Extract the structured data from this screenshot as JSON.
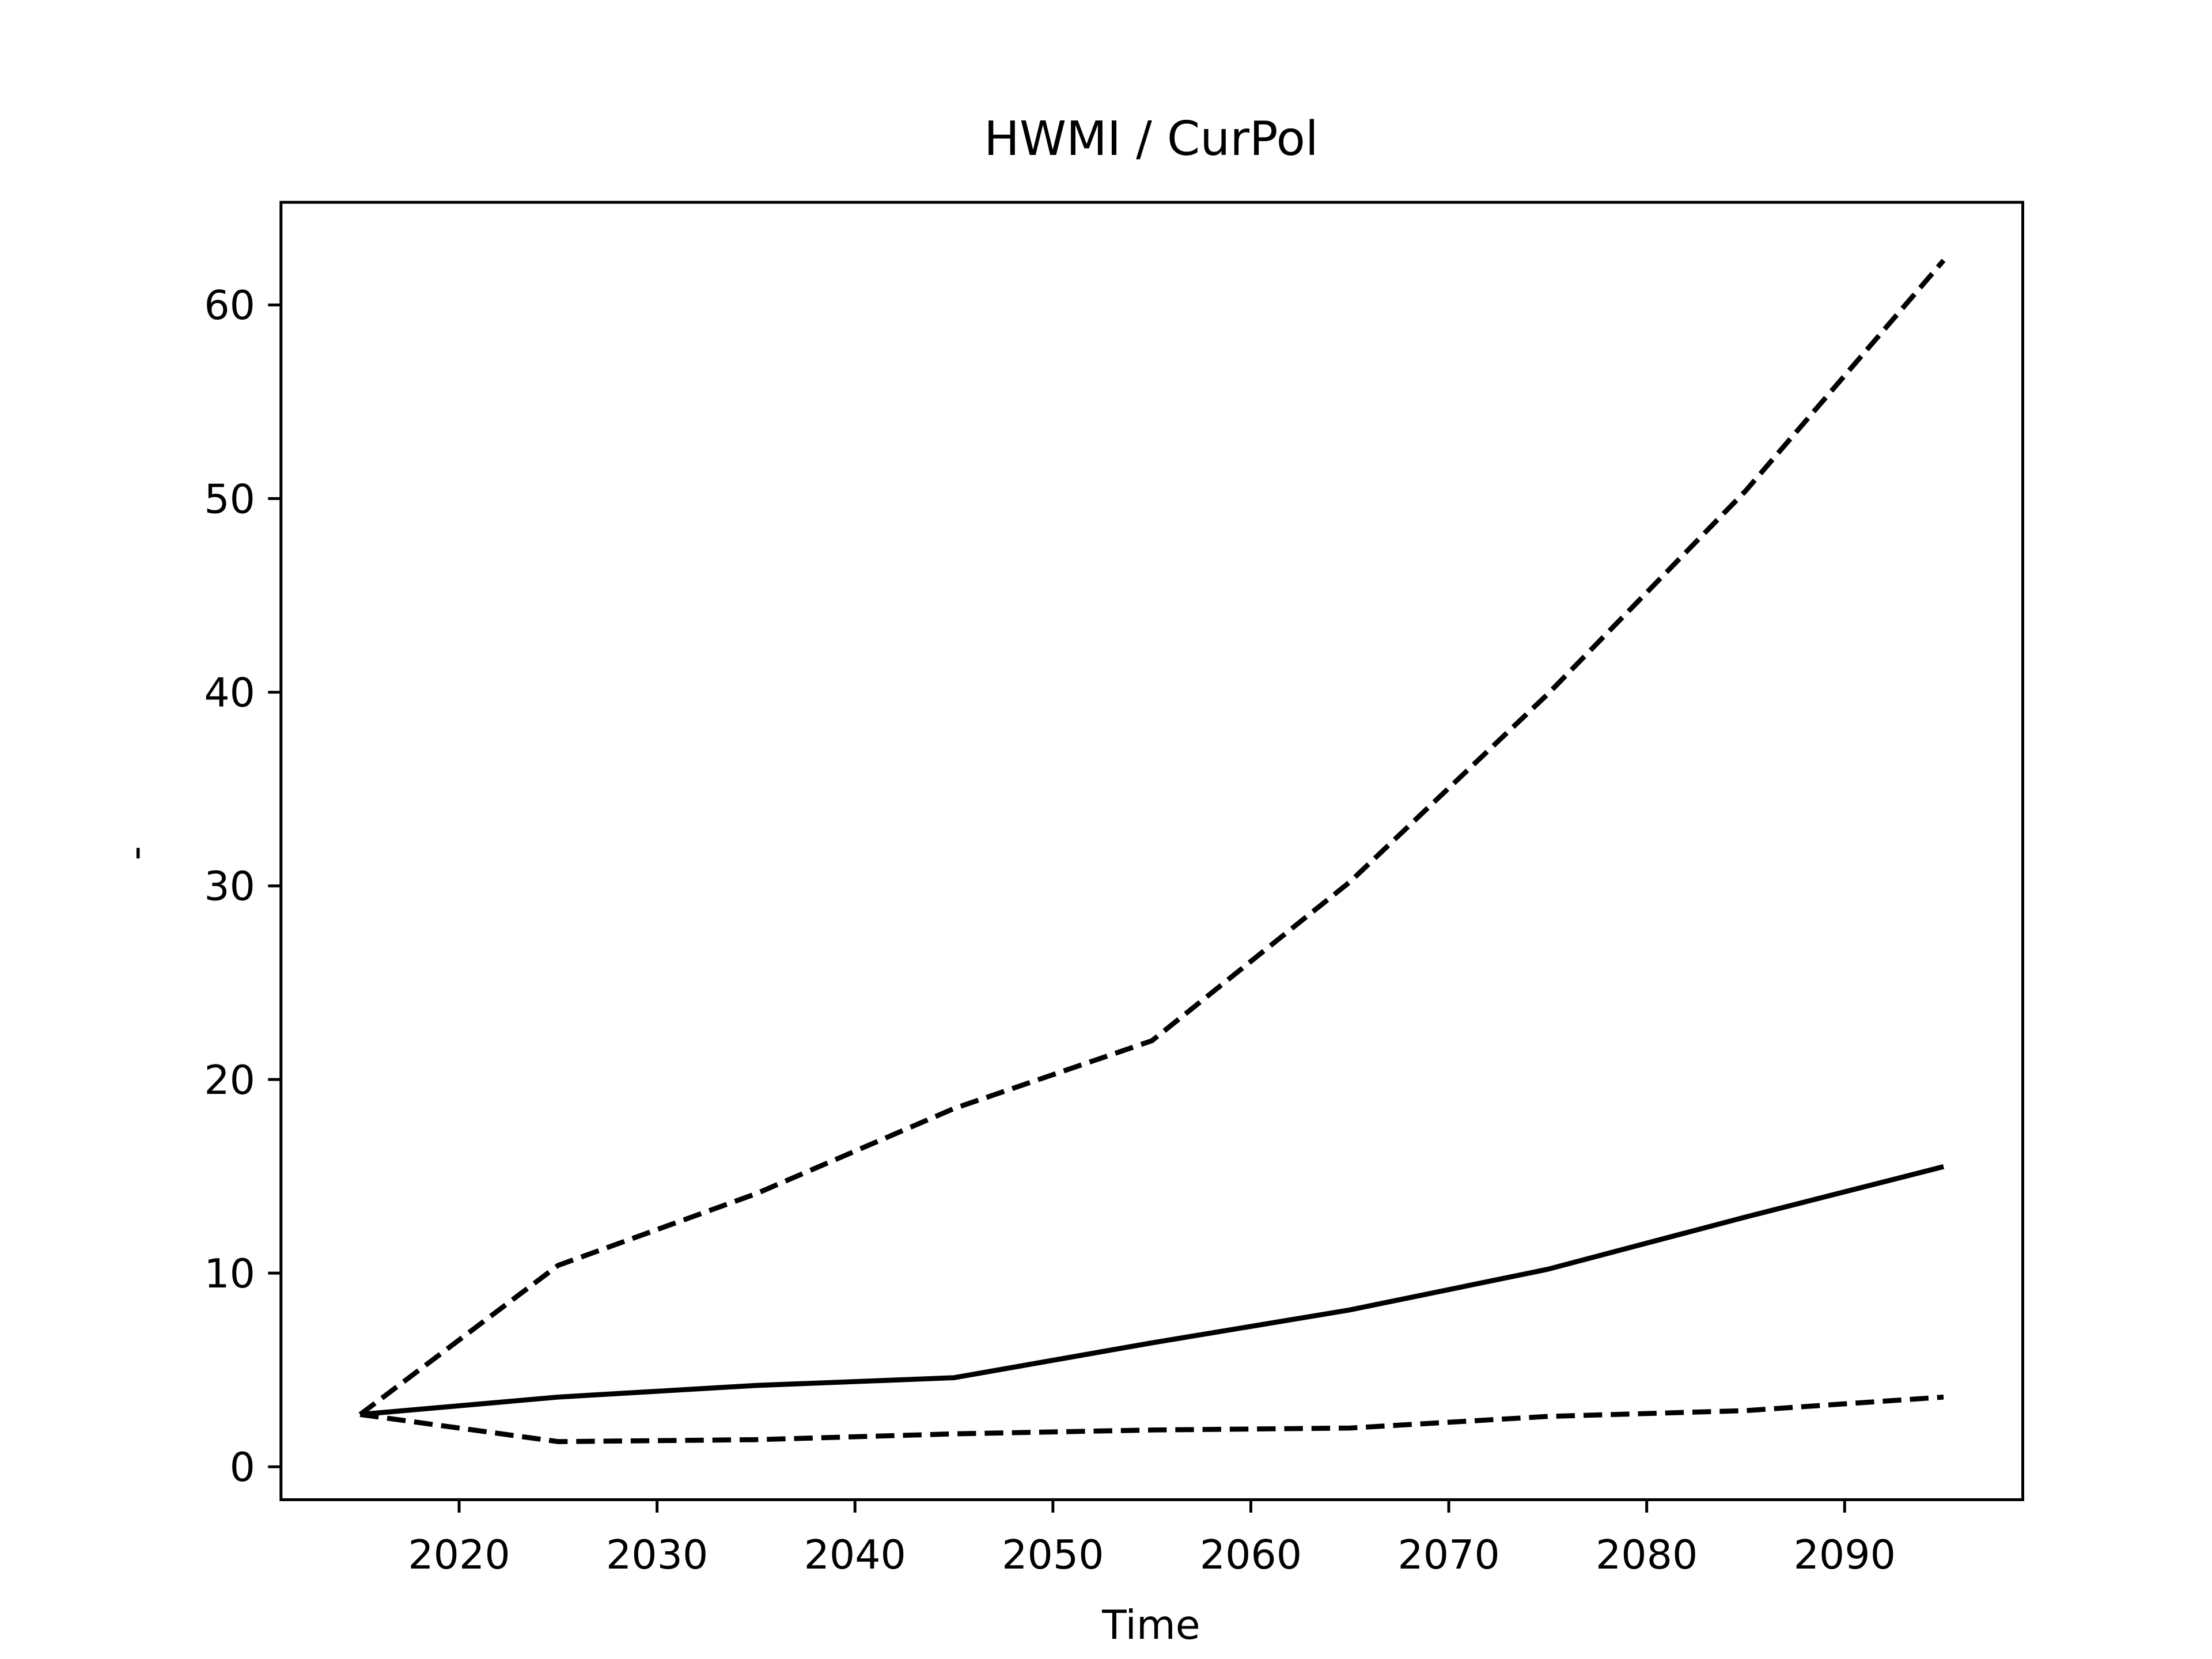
{
  "chart_data": {
    "type": "line",
    "title": "HWMI / CurPol",
    "x_label": "Time",
    "y_label": "-",
    "x": [
      2015,
      2025,
      2035,
      2045,
      2055,
      2065,
      2075,
      2085,
      2095
    ],
    "series": [
      {
        "color": "#000000",
        "dashed": true,
        "values": [
          2.7,
          10.4,
          14.1,
          18.5,
          22.0,
          30.2,
          39.9,
          50.4,
          62.3
        ]
      },
      {
        "color": "#000000",
        "dashed": false,
        "values": [
          2.7,
          3.6,
          4.2,
          4.6,
          6.4,
          8.1,
          10.2,
          12.9,
          15.5
        ]
      },
      {
        "color": "#000000",
        "dashed": true,
        "values": [
          2.7,
          1.3,
          1.4,
          1.7,
          1.9,
          2.0,
          2.6,
          2.9,
          3.6
        ]
      }
    ],
    "xlim": [
      2011,
      2099
    ],
    "ylim": [
      -1.7,
      65.3
    ],
    "xticks": [
      2020,
      2030,
      2040,
      2050,
      2060,
      2070,
      2080,
      2090
    ],
    "yticks": [
      0,
      10,
      20,
      30,
      40,
      50,
      60
    ],
    "grid": false
  }
}
